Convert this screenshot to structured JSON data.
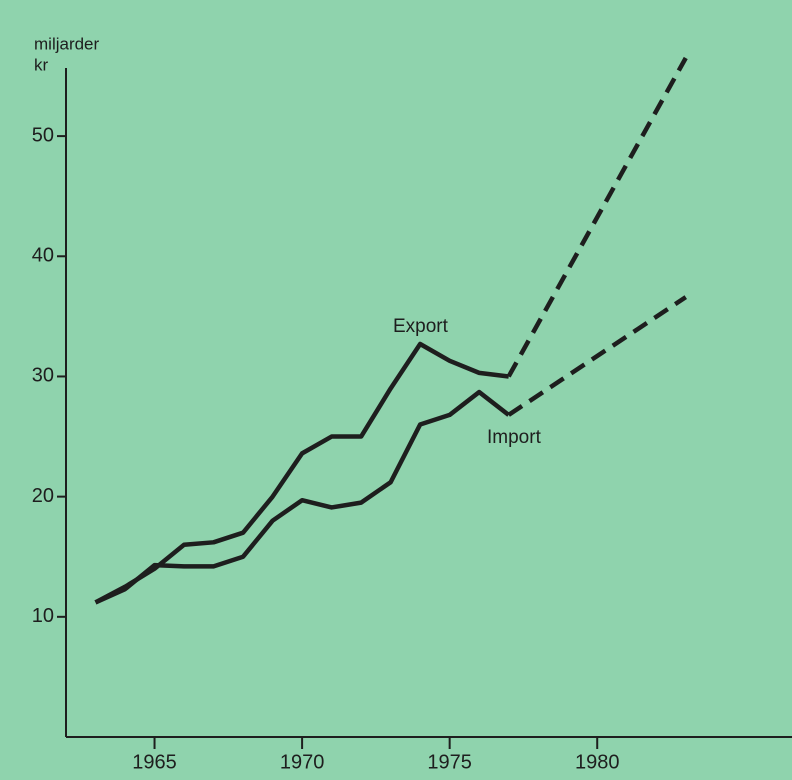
{
  "chart_data": {
    "type": "line",
    "y_label": [
      "miljarder",
      "kr"
    ],
    "x": [
      1963,
      1964,
      1965,
      1966,
      1967,
      1968,
      1969,
      1970,
      1971,
      1972,
      1973,
      1974,
      1975,
      1976,
      1977,
      1983
    ],
    "series": [
      {
        "name": "Export",
        "color": "#1e1e1e",
        "values": [
          11.2,
          12.5,
          14.0,
          16.0,
          16.2,
          17.0,
          20.0,
          23.6,
          25.0,
          25.0,
          29.0,
          32.7,
          31.3,
          30.3,
          30.0,
          56.5
        ]
      },
      {
        "name": "Import",
        "color": "#1e1e1e",
        "values": [
          11.2,
          12.3,
          14.3,
          14.2,
          14.2,
          15.0,
          18.0,
          19.7,
          19.1,
          19.5,
          21.2,
          26.0,
          26.8,
          28.7,
          26.8,
          36.6
        ]
      }
    ],
    "dashed_from_x": 1977,
    "xlim": [
      1962,
      1986.6
    ],
    "xticks": [
      1965,
      1970,
      1975,
      1980
    ],
    "ylim": [
      0,
      55.5
    ],
    "yticks": [
      10,
      20,
      30,
      40,
      50
    ],
    "background": "#8fd3ad"
  }
}
